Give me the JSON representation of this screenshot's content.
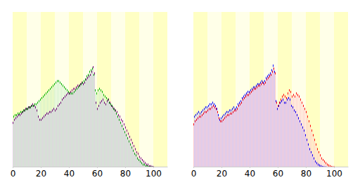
{
  "chart_data": [
    {
      "type": "bar",
      "tick_labels": "x",
      "x": [
        0,
        1,
        2,
        3,
        4,
        5,
        6,
        7,
        8,
        9,
        10,
        11,
        12,
        13,
        14,
        15,
        16,
        17,
        18,
        19,
        20,
        21,
        22,
        23,
        24,
        25,
        26,
        27,
        28,
        29,
        30,
        31,
        32,
        33,
        34,
        35,
        36,
        37,
        38,
        39,
        40,
        41,
        42,
        43,
        44,
        45,
        46,
        47,
        48,
        49,
        50,
        51,
        52,
        53,
        54,
        55,
        56,
        57,
        58,
        59,
        60,
        61,
        62,
        63,
        64,
        65,
        66,
        67,
        68,
        69,
        70,
        71,
        72,
        73,
        74,
        75,
        76,
        77,
        78,
        79,
        80,
        81,
        82,
        83,
        84,
        85,
        86,
        87,
        88,
        89,
        90,
        91,
        92,
        93,
        94,
        95,
        96,
        97,
        98,
        99,
        100
      ],
      "xlim": [
        0,
        110
      ],
      "xticks": [
        0,
        20,
        40,
        60,
        80,
        100
      ],
      "ylim": [
        0,
        100
      ],
      "series": [
        {
          "color": "#00b000",
          "values": [
            33,
            33,
            34,
            34,
            35,
            35,
            36,
            36,
            37,
            37,
            38,
            38,
            39,
            39,
            40,
            40,
            41,
            41,
            42,
            43,
            44,
            45,
            46,
            47,
            48,
            49,
            50,
            51,
            52,
            53,
            54,
            55,
            56,
            56,
            55,
            54,
            53,
            52,
            51,
            50,
            49,
            48,
            48,
            48,
            49,
            50,
            51,
            52,
            53,
            54,
            55,
            56,
            57,
            59,
            60,
            62,
            63,
            64,
            60,
            50,
            48,
            50,
            51,
            50,
            49,
            47,
            46,
            45,
            44,
            42,
            41,
            40,
            38,
            37,
            35,
            33,
            31,
            29,
            27,
            25,
            23,
            21,
            19,
            17,
            15,
            13,
            11,
            9,
            8,
            6,
            5,
            4,
            3,
            2,
            2,
            1,
            1,
            0.5,
            0.3,
            0.2,
            0.1
          ]
        },
        {
          "color": "#800080",
          "values": [
            29,
            31,
            32,
            33,
            34,
            34,
            35,
            36,
            37,
            38,
            38,
            39,
            39,
            40,
            41,
            40,
            39,
            37,
            33,
            31,
            31,
            32,
            33,
            34,
            35,
            35,
            36,
            36,
            37,
            38,
            37,
            38,
            40,
            41,
            42,
            44,
            45,
            46,
            47,
            48,
            48,
            49,
            50,
            51,
            51,
            52,
            53,
            53,
            54,
            55,
            54,
            55,
            57,
            58,
            59,
            60,
            62,
            65,
            61,
            42,
            38,
            40,
            42,
            43,
            44,
            42,
            41,
            43,
            44,
            42,
            40,
            39,
            38,
            37,
            36,
            34,
            33,
            31,
            30,
            28,
            26,
            24,
            22,
            20,
            18,
            16,
            14,
            12,
            10,
            9,
            7,
            6,
            5,
            4,
            3,
            2,
            2,
            1,
            1,
            0.5,
            0.3
          ]
        }
      ]
    },
    {
      "type": "bar",
      "tick_labels": "x",
      "x": [
        0,
        1,
        2,
        3,
        4,
        5,
        6,
        7,
        8,
        9,
        10,
        11,
        12,
        13,
        14,
        15,
        16,
        17,
        18,
        19,
        20,
        21,
        22,
        23,
        24,
        25,
        26,
        27,
        28,
        29,
        30,
        31,
        32,
        33,
        34,
        35,
        36,
        37,
        38,
        39,
        40,
        41,
        42,
        43,
        44,
        45,
        46,
        47,
        48,
        49,
        50,
        51,
        52,
        53,
        54,
        55,
        56,
        57,
        58,
        59,
        60,
        61,
        62,
        63,
        64,
        65,
        66,
        67,
        68,
        69,
        70,
        71,
        72,
        73,
        74,
        75,
        76,
        77,
        78,
        79,
        80,
        81,
        82,
        83,
        84,
        85,
        86,
        87,
        88,
        89,
        90,
        91,
        92,
        93,
        94,
        95,
        96,
        97,
        98,
        99,
        100
      ],
      "xlim": [
        0,
        110
      ],
      "xticks": [
        0,
        20,
        40,
        60,
        80,
        100
      ],
      "ylim": [
        0,
        100
      ],
      "series": [
        {
          "color": "#0000ff",
          "values": [
            31,
            33,
            34,
            35,
            36,
            35,
            36,
            37,
            38,
            39,
            39,
            40,
            41,
            41,
            42,
            41,
            40,
            38,
            34,
            31,
            32,
            33,
            34,
            35,
            36,
            36,
            37,
            37,
            38,
            39,
            38,
            39,
            41,
            42,
            43,
            45,
            46,
            47,
            48,
            49,
            49,
            50,
            51,
            52,
            52,
            53,
            54,
            54,
            55,
            56,
            55,
            56,
            58,
            59,
            60,
            61,
            63,
            66,
            62,
            43,
            38,
            40,
            42,
            43,
            44,
            42,
            42,
            44,
            45,
            44,
            40,
            39,
            37,
            36,
            34,
            32,
            30,
            28,
            26,
            24,
            21,
            18,
            15,
            12,
            10,
            8,
            6,
            4,
            3,
            2,
            1.5,
            1,
            0.5,
            0.3,
            0.2,
            0.1,
            0,
            0,
            0,
            0,
            0
          ]
        },
        {
          "color": "#ff0000",
          "values": [
            28,
            30,
            31,
            32,
            33,
            33,
            34,
            35,
            36,
            36,
            37,
            38,
            38,
            39,
            40,
            39,
            38,
            36,
            32,
            30,
            30,
            31,
            32,
            33,
            34,
            34,
            35,
            35,
            36,
            37,
            37,
            38,
            40,
            41,
            42,
            44,
            45,
            46,
            47,
            47,
            48,
            49,
            50,
            51,
            51,
            52,
            53,
            53,
            54,
            55,
            54,
            55,
            57,
            58,
            59,
            60,
            62,
            64,
            61,
            42,
            40,
            42,
            44,
            46,
            47,
            46,
            45,
            48,
            50,
            49,
            46,
            47,
            46,
            48,
            47,
            46,
            44,
            42,
            40,
            38,
            36,
            33,
            30,
            27,
            24,
            21,
            18,
            15,
            12,
            10,
            8,
            6,
            5,
            4,
            3,
            2,
            1.5,
            1,
            0.5,
            0.3,
            0.2
          ]
        }
      ]
    }
  ]
}
